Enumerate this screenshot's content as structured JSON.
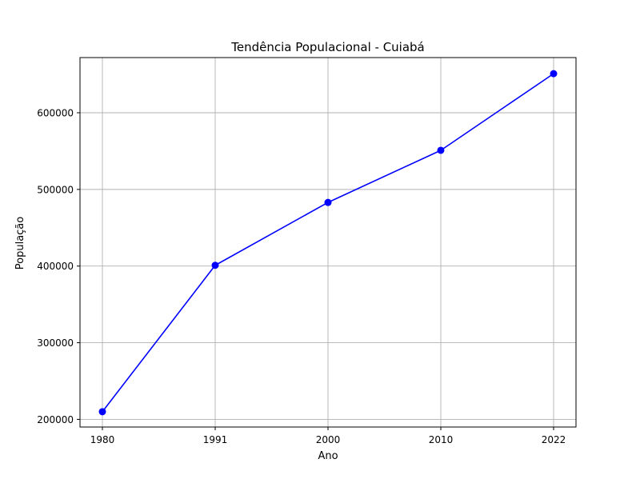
{
  "chart_data": {
    "type": "line",
    "title": "Tendência Populacional - Cuiabá",
    "xlabel": "Ano",
    "ylabel": "População",
    "categories": [
      "1980",
      "1991",
      "2000",
      "2010",
      "2022"
    ],
    "series": [
      {
        "values": [
          210000,
          401000,
          483000,
          551000,
          651000
        ],
        "color": "#0000ff",
        "marker": "circle"
      }
    ],
    "yticks": [
      200000,
      300000,
      400000,
      500000,
      600000
    ],
    "ytick_labels": [
      "200000",
      "300000",
      "400000",
      "500000",
      "600000"
    ],
    "ylim": [
      190000,
      672000
    ],
    "grid": true
  }
}
